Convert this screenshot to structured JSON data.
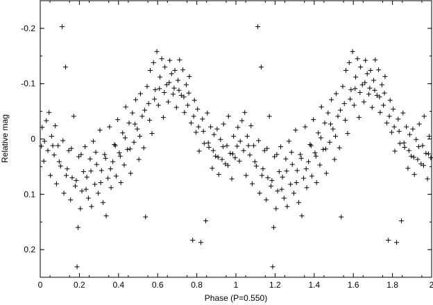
{
  "chart_data": {
    "type": "scatter",
    "title": "",
    "xlabel": "Phase (P=0.550)",
    "ylabel": "Relative mag",
    "xlim": [
      0,
      2
    ],
    "ylim": [
      0.25,
      -0.25
    ],
    "y_inverted": true,
    "xticks": [
      "0",
      "0.2",
      "0.4",
      "0.6",
      "0.8",
      "1",
      "1.2",
      "1.4",
      "1.6",
      "1.8",
      "2"
    ],
    "yticks": [
      "-0.2",
      "-0.1",
      "0",
      "0.1",
      "0.2"
    ],
    "marker": "plus",
    "grid": false,
    "legend": "none",
    "period_repeat": true,
    "points": [
      [
        0.006,
        0.013
      ],
      [
        0.018,
        0.04
      ],
      [
        0.031,
        -0.033
      ],
      [
        0.039,
        0.021
      ],
      [
        0.052,
        0.066
      ],
      [
        0.058,
        -0.005
      ],
      [
        0.071,
        0.029
      ],
      [
        0.083,
        0.081
      ],
      [
        0.091,
        0.012
      ],
      [
        0.104,
        0.049
      ],
      [
        0.112,
        -0.203
      ],
      [
        0.121,
        0.098
      ],
      [
        0.129,
        -0.13
      ],
      [
        0.138,
        0.054
      ],
      [
        0.146,
        0.021
      ],
      [
        0.155,
        0.11
      ],
      [
        0.163,
        0.07
      ],
      [
        0.171,
        -0.041
      ],
      [
        0.179,
        0.085
      ],
      [
        0.188,
        0.231
      ],
      [
        0.193,
        0.16
      ],
      [
        0.197,
        0.032
      ],
      [
        0.205,
        0.126
      ],
      [
        0.213,
        0.094
      ],
      [
        0.221,
        0.059
      ],
      [
        0.229,
        0.014
      ],
      [
        0.238,
        0.069
      ],
      [
        0.246,
        0.107
      ],
      [
        0.255,
        0.036
      ],
      [
        0.262,
        0.122
      ],
      [
        0.271,
        0.004
      ],
      [
        0.279,
        0.082
      ],
      [
        0.288,
        0.046
      ],
      [
        0.296,
        0.098
      ],
      [
        0.305,
        -0.016
      ],
      [
        0.313,
        0.057
      ],
      [
        0.321,
        0.115
      ],
      [
        0.329,
        0.028
      ],
      [
        0.337,
        0.139
      ],
      [
        0.346,
        0.071
      ],
      [
        0.354,
        -0.022
      ],
      [
        0.362,
        0.088
      ],
      [
        0.371,
        0.041
      ],
      [
        0.379,
        0.01
      ],
      [
        0.388,
        0.067
      ],
      [
        0.396,
        -0.035
      ],
      [
        0.404,
        0.025
      ],
      [
        0.412,
        0.079
      ],
      [
        0.421,
        -0.011
      ],
      [
        0.429,
        0.047
      ],
      [
        0.437,
        -0.058
      ],
      [
        0.446,
        0.019
      ],
      [
        0.454,
        -0.029
      ],
      [
        0.462,
        0.062
      ],
      [
        0.471,
        -0.047
      ],
      [
        0.479,
        0.006
      ],
      [
        0.488,
        -0.071
      ],
      [
        0.496,
        -0.018
      ],
      [
        0.504,
        0.037
      ],
      [
        0.512,
        -0.082
      ],
      [
        0.521,
        -0.041
      ],
      [
        0.529,
        0.016
      ],
      [
        0.538,
        0.141
      ],
      [
        0.546,
        -0.095
      ],
      [
        0.554,
        -0.064
      ],
      [
        0.562,
        -0.124
      ],
      [
        0.571,
        -0.01
      ],
      [
        0.579,
        -0.138
      ],
      [
        0.588,
        -0.089
      ],
      [
        0.596,
        -0.158
      ],
      [
        0.604,
        -0.061
      ],
      [
        0.612,
        -0.112
      ],
      [
        0.621,
        -0.145
      ],
      [
        0.629,
        -0.039
      ],
      [
        0.637,
        -0.13
      ],
      [
        0.646,
        -0.098
      ],
      [
        0.654,
        -0.067
      ],
      [
        0.662,
        -0.142
      ],
      [
        0.671,
        -0.118
      ],
      [
        0.679,
        -0.081
      ],
      [
        0.688,
        -0.124
      ],
      [
        0.696,
        -0.057
      ],
      [
        0.704,
        -0.106
      ],
      [
        0.712,
        -0.143
      ],
      [
        0.721,
        -0.079
      ],
      [
        0.729,
        -0.125
      ],
      [
        0.737,
        -0.048
      ],
      [
        0.746,
        -0.098
      ],
      [
        0.754,
        -0.061
      ],
      [
        0.762,
        -0.113
      ],
      [
        0.771,
        -0.029
      ],
      [
        0.779,
        0.183
      ],
      [
        0.788,
        -0.07
      ],
      [
        0.796,
        -0.012
      ],
      [
        0.804,
        -0.054
      ],
      [
        0.812,
        0.022
      ],
      [
        0.821,
        0.187
      ],
      [
        0.829,
        -0.036
      ],
      [
        0.838,
        0.008
      ],
      [
        0.846,
        0.148
      ],
      [
        0.854,
        -0.047
      ],
      [
        0.862,
        0.015
      ],
      [
        0.871,
        -0.022
      ],
      [
        0.879,
        0.053
      ],
      [
        0.888,
        -0.008
      ],
      [
        0.896,
        0.031
      ],
      [
        0.904,
        -0.018
      ],
      [
        0.912,
        0.064
      ],
      [
        0.921,
        0.001
      ],
      [
        0.929,
        0.037
      ],
      [
        0.937,
        -0.027
      ],
      [
        0.946,
        0.045
      ],
      [
        0.954,
        0.012
      ],
      [
        0.962,
        -0.041
      ],
      [
        0.971,
        0.026
      ],
      [
        0.979,
        0.072
      ],
      [
        0.988,
        -0.005
      ],
      [
        0.996,
        0.034
      ],
      [
        0.01,
        -0.021
      ],
      [
        0.022,
        0.004
      ],
      [
        0.045,
        -0.048
      ],
      [
        0.064,
        0.012
      ],
      [
        0.077,
        -0.024
      ],
      [
        0.097,
        0.041
      ],
      [
        0.116,
        0.003
      ],
      [
        0.133,
        0.066
      ],
      [
        0.159,
        0.017
      ],
      [
        0.184,
        0.075
      ],
      [
        0.209,
        0.028
      ],
      [
        0.234,
        0.091
      ],
      [
        0.259,
        0.058
      ],
      [
        0.284,
        0.024
      ],
      [
        0.309,
        0.079
      ],
      [
        0.334,
        0.035
      ],
      [
        0.359,
        0.054
      ],
      [
        0.384,
        0.012
      ],
      [
        0.409,
        0.031
      ],
      [
        0.434,
        -0.002
      ],
      [
        0.459,
        0.018
      ],
      [
        0.484,
        -0.027
      ],
      [
        0.509,
        -0.005
      ],
      [
        0.534,
        -0.052
      ],
      [
        0.559,
        -0.034
      ],
      [
        0.584,
        -0.072
      ],
      [
        0.609,
        -0.091
      ],
      [
        0.634,
        -0.084
      ],
      [
        0.659,
        -0.102
      ],
      [
        0.684,
        -0.092
      ],
      [
        0.709,
        -0.088
      ],
      [
        0.734,
        -0.076
      ],
      [
        0.759,
        -0.083
      ],
      [
        0.784,
        -0.041
      ],
      [
        0.809,
        -0.022
      ],
      [
        0.834,
        -0.014
      ],
      [
        0.859,
        0.007
      ],
      [
        0.884,
        0.021
      ],
      [
        0.909,
        0.033
      ],
      [
        0.934,
        0.014
      ],
      [
        0.959,
        0.048
      ],
      [
        0.984,
        0.027
      ]
    ]
  }
}
